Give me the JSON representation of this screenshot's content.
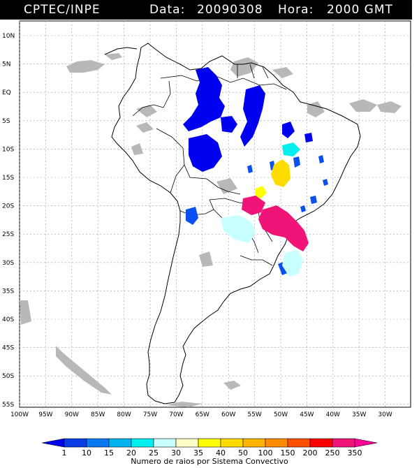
{
  "header": {
    "source": "CPTEC/INPE",
    "date_label": "Data:",
    "date_value": "20090308",
    "hour_label": "Hora:",
    "hour_value": "2000 GMT"
  },
  "axes": {
    "lat_labels": [
      "10N",
      "5N",
      "EQ",
      "5S",
      "10S",
      "15S",
      "20S",
      "25S",
      "30S",
      "35S",
      "40S",
      "45S",
      "50S",
      "55S"
    ],
    "lon_labels": [
      "100W",
      "95W",
      "90W",
      "85W",
      "80W",
      "75W",
      "70W",
      "65W",
      "60W",
      "55W",
      "50W",
      "45W",
      "40W",
      "35W",
      "30W"
    ]
  },
  "legend": {
    "ticks": [
      "1",
      "10",
      "15",
      "20",
      "25",
      "30",
      "35",
      "40",
      "50",
      "100",
      "150",
      "200",
      "250",
      "350"
    ],
    "colors": [
      "#0000f0",
      "#0a3ce6",
      "#0a78f0",
      "#00b4f0",
      "#00f0f0",
      "#c8ffff",
      "#ffffc8",
      "#ffff00",
      "#ffdc00",
      "#ffb400",
      "#ff8c00",
      "#ff5000",
      "#ff0000",
      "#f01478",
      "#ff0096"
    ],
    "caption": "Numero de raios por Sistema Convectivo"
  },
  "colors": {
    "land_outline": "#000000",
    "grid": "#9a9a9a",
    "cloud_gray": "#b4b4b4"
  }
}
